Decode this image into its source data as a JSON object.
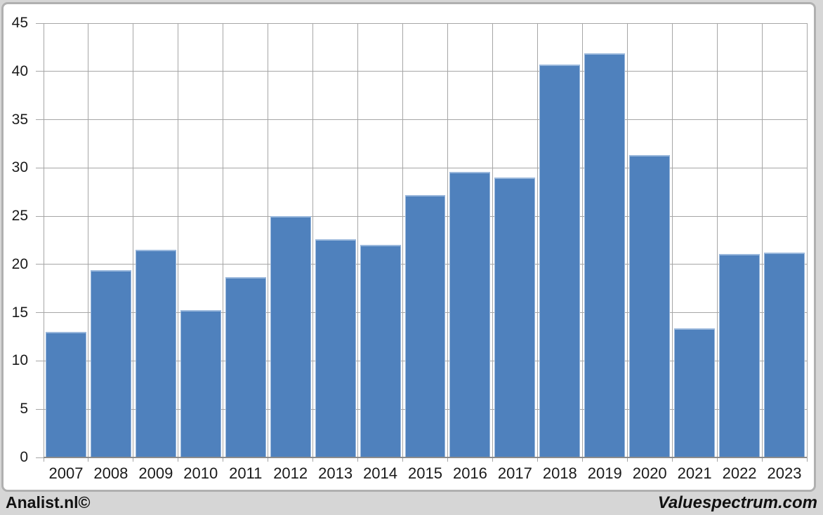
{
  "chart_data": {
    "type": "bar",
    "categories": [
      "2007",
      "2008",
      "2009",
      "2010",
      "2011",
      "2012",
      "2013",
      "2014",
      "2015",
      "2016",
      "2017",
      "2018",
      "2019",
      "2020",
      "2021",
      "2022",
      "2023"
    ],
    "values": [
      13.0,
      19.4,
      21.5,
      15.3,
      18.7,
      25.0,
      22.6,
      22.0,
      27.2,
      29.6,
      29.0,
      40.7,
      41.9,
      31.3,
      13.4,
      21.1,
      21.2
    ],
    "title": "",
    "xlabel": "",
    "ylabel": "",
    "ylim": [
      0,
      45
    ],
    "ytick_step": 5,
    "grid": true,
    "legend": false,
    "colors": {
      "bar": "#4f81bd",
      "bar_border": "#9ab8dc",
      "gridline": "#a6a6a6",
      "axis": "#8c8c8c",
      "label": "#1a1a1a"
    }
  },
  "frame": {
    "page_bg": "#d6d6d6",
    "card_bg": "#ffffff",
    "card_border": "#b0b0b0"
  },
  "footer": {
    "left_text": "Analist.nl©",
    "right_text": "Valuespectrum.com"
  }
}
